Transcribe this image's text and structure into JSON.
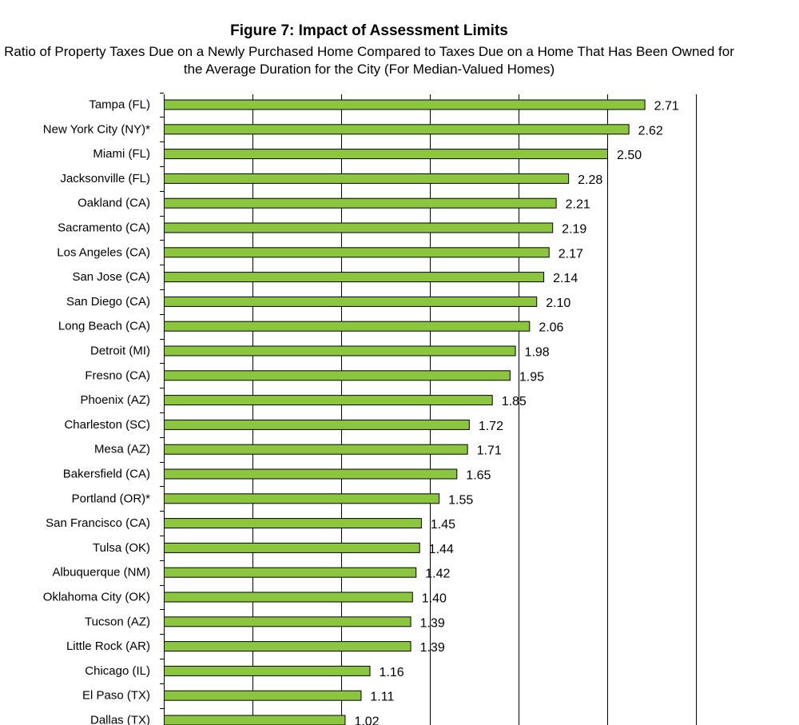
{
  "chart_data": {
    "type": "bar",
    "orientation": "horizontal",
    "title": "Figure 7: Impact of Assessment Limits",
    "subtitle": "Ratio of Property Taxes Due on a Newly Purchased Home Compared to Taxes Due on a Home That Has Been Owned for the Average Duration for the City (For Median-Valued Homes)",
    "categories": [
      "Tampa (FL)",
      "New York City (NY)*",
      "Miami (FL)",
      "Jacksonville (FL)",
      "Oakland (CA)",
      "Sacramento (CA)",
      "Los Angeles (CA)",
      "San Jose (CA)",
      "San Diego (CA)",
      "Long Beach (CA)",
      "Detroit (MI)",
      "Fresno (CA)",
      "Phoenix (AZ)",
      "Charleston (SC)",
      "Mesa (AZ)",
      "Bakersfield (CA)",
      "Portland (OR)*",
      "San Francisco (CA)",
      "Tulsa (OK)",
      "Albuquerque (NM)",
      "Oklahoma City (OK)",
      "Tucson (AZ)",
      "Little Rock (AR)",
      "Chicago (IL)",
      "El Paso (TX)",
      "Dallas (TX)"
    ],
    "values": [
      2.71,
      2.62,
      2.5,
      2.28,
      2.21,
      2.19,
      2.17,
      2.14,
      2.1,
      2.06,
      1.98,
      1.95,
      1.85,
      1.72,
      1.71,
      1.65,
      1.55,
      1.45,
      1.44,
      1.42,
      1.4,
      1.39,
      1.39,
      1.16,
      1.11,
      1.02
    ],
    "value_labels": [
      "2.71",
      "2.62",
      "2.50",
      "2.28",
      "2.21",
      "2.19",
      "2.17",
      "2.14",
      "2.10",
      "2.06",
      "1.98",
      "1.95",
      "1.85",
      "1.72",
      "1.71",
      "1.65",
      "1.55",
      "1.45",
      "1.44",
      "1.42",
      "1.40",
      "1.39",
      "1.39",
      "1.16",
      "1.11",
      "1.02"
    ],
    "xlim": [
      0,
      3
    ],
    "grid": true,
    "bar_color": "#8CC63F",
    "bar_edge_color": "#000000"
  }
}
